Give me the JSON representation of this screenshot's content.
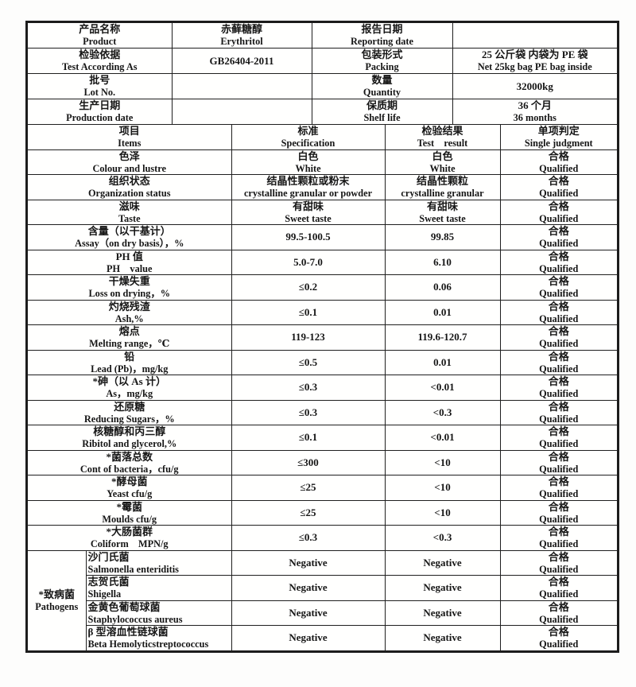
{
  "info": {
    "rows": [
      {
        "l1_cn": "产品名称",
        "l1_en": "Product",
        "v1_cn": "赤藓糖醇",
        "v1_en": "Erythritol",
        "l2_cn": "报告日期",
        "l2_en": "Reporting date",
        "v2_cn": "",
        "v2_en": ""
      },
      {
        "l1_cn": "检验依据",
        "l1_en": "Test According As",
        "v1_cn": "GB26404-2011",
        "v1_en": "",
        "l2_cn": "包装形式",
        "l2_en": "Packing",
        "v2_cn": "25 公斤袋 内袋为 PE 袋",
        "v2_en": "Net 25kg bag PE bag inside"
      },
      {
        "l1_cn": "批号",
        "l1_en": "Lot No.",
        "v1_cn": "",
        "v1_en": "",
        "l2_cn": "数量",
        "l2_en": "Quantity",
        "v2_cn": "32000kg",
        "v2_en": ""
      },
      {
        "l1_cn": "生产日期",
        "l1_en": "Production date",
        "v1_cn": "",
        "v1_en": "",
        "l2_cn": "保质期",
        "l2_en": "Shelf life",
        "v2_cn": "36 个月",
        "v2_en": "36 months"
      }
    ]
  },
  "main": {
    "columns": {
      "item_cn": "项目",
      "item_en": "Items",
      "spec_cn": "标准",
      "spec_en": "Specification",
      "result_cn": "检验结果",
      "result_en": "Test　result",
      "judge_cn": "单项判定",
      "judge_en": "Single judgment"
    },
    "rows": [
      {
        "name_cn": "色泽",
        "name_en": "Colour and lustre",
        "spec_cn": "白色",
        "spec_en": "White",
        "result_cn": "白色",
        "result_en": "White",
        "judge_cn": "合格",
        "judge_en": "Qualified"
      },
      {
        "name_cn": "组织状态",
        "name_en": "Organization status",
        "spec_cn": "结晶性颗粒或粉末",
        "spec_en": "crystalline granular or powder",
        "result_cn": "结晶性颗粒",
        "result_en": "crystalline granular",
        "judge_cn": "合格",
        "judge_en": "Qualified"
      },
      {
        "name_cn": "滋味",
        "name_en": "Taste",
        "spec_cn": "有甜味",
        "spec_en": "Sweet taste",
        "result_cn": "有甜味",
        "result_en": "Sweet taste",
        "judge_cn": "合格",
        "judge_en": "Qualified"
      },
      {
        "name_cn": "含量（以干基计）",
        "name_en": "Assay（on dry basis），%",
        "spec_cn": "99.5-100.5",
        "spec_en": "",
        "result_cn": "99.85",
        "result_en": "",
        "judge_cn": "合格",
        "judge_en": "Qualified"
      },
      {
        "name_cn": "PH 值",
        "name_en": "PH　value",
        "spec_cn": "5.0-7.0",
        "spec_en": "",
        "result_cn": "6.10",
        "result_en": "",
        "judge_cn": "合格",
        "judge_en": "Qualified"
      },
      {
        "name_cn": "干燥失重",
        "name_en": "Loss on drying，%",
        "spec_cn": "≤0.2",
        "spec_en": "",
        "result_cn": "0.06",
        "result_en": "",
        "judge_cn": "合格",
        "judge_en": "Qualified"
      },
      {
        "name_cn": "灼烧残渣",
        "name_en": "Ash,%",
        "spec_cn": "≤0.1",
        "spec_en": "",
        "result_cn": "0.01",
        "result_en": "",
        "judge_cn": "合格",
        "judge_en": "Qualified"
      },
      {
        "name_cn": "熔点",
        "name_en": "Melting range，℃",
        "spec_cn": "119-123",
        "spec_en": "",
        "result_cn": "119.6-120.7",
        "result_en": "",
        "judge_cn": "合格",
        "judge_en": "Qualified"
      },
      {
        "name_cn": "铅",
        "name_en": "Lead (Pb)，mg/kg",
        "spec_cn": "≤0.5",
        "spec_en": "",
        "result_cn": "0.01",
        "result_en": "",
        "judge_cn": "合格",
        "judge_en": "Qualified"
      },
      {
        "name_cn": "*砷（以 As 计）",
        "name_en": "As，mg/kg",
        "spec_cn": "≤0.3",
        "spec_en": "",
        "result_cn": "<0.01",
        "result_en": "",
        "judge_cn": "合格",
        "judge_en": "Qualified"
      },
      {
        "name_cn": "还原糖",
        "name_en": "Reducing Sugars，%",
        "spec_cn": "≤0.3",
        "spec_en": "",
        "result_cn": "<0.3",
        "result_en": "",
        "judge_cn": "合格",
        "judge_en": "Qualified"
      },
      {
        "name_cn": "核糖醇和丙三醇",
        "name_en": "Ribitol and glycerol,%",
        "spec_cn": "≤0.1",
        "spec_en": "",
        "result_cn": "<0.01",
        "result_en": "",
        "judge_cn": "合格",
        "judge_en": "Qualified"
      },
      {
        "name_cn": "*菌落总数",
        "name_en": "Cont of bacteria，cfu/g",
        "spec_cn": "≤300",
        "spec_en": "",
        "result_cn": "<10",
        "result_en": "",
        "judge_cn": "合格",
        "judge_en": "Qualified"
      },
      {
        "name_cn": "*酵母菌",
        "name_en": "Yeast cfu/g",
        "spec_cn": "≤25",
        "spec_en": "",
        "result_cn": "<10",
        "result_en": "",
        "judge_cn": "合格",
        "judge_en": "Qualified"
      },
      {
        "name_cn": "*霉菌",
        "name_en": "Moulds cfu/g",
        "spec_cn": "≤25",
        "spec_en": "",
        "result_cn": "<10",
        "result_en": "",
        "judge_cn": "合格",
        "judge_en": "Qualified"
      },
      {
        "name_cn": "*大肠菌群",
        "name_en": "Coliform　MPN/g",
        "spec_cn": "≤0.3",
        "spec_en": "",
        "result_cn": "<0.3",
        "result_en": "",
        "judge_cn": "合格",
        "judge_en": "Qualified"
      }
    ],
    "pathogens": {
      "group_cn": "*致病菌",
      "group_en": "Pathogens",
      "rows": [
        {
          "name_cn": "沙门氏菌",
          "name_en": "Salmonella enteriditis",
          "spec_cn": "Negative",
          "spec_en": "",
          "result_cn": "Negative",
          "result_en": "",
          "judge_cn": "合格",
          "judge_en": "Qualified"
        },
        {
          "name_cn": "志贺氏菌",
          "name_en": "Shigella",
          "spec_cn": "Negative",
          "spec_en": "",
          "result_cn": "Negative",
          "result_en": "",
          "judge_cn": "合格",
          "judge_en": "Qualified"
        },
        {
          "name_cn": "金黄色葡萄球菌",
          "name_en": "Staphylococcus aureus",
          "spec_cn": "Negative",
          "spec_en": "",
          "result_cn": "Negative",
          "result_en": "",
          "judge_cn": "合格",
          "judge_en": "Qualified"
        },
        {
          "name_cn": "β 型溶血性链球菌",
          "name_en": "Beta Hemolyticstreptococcus",
          "spec_cn": "Negative",
          "spec_en": "",
          "result_cn": "Negative",
          "result_en": "",
          "judge_cn": "合格",
          "judge_en": "Qualified"
        }
      ]
    }
  }
}
